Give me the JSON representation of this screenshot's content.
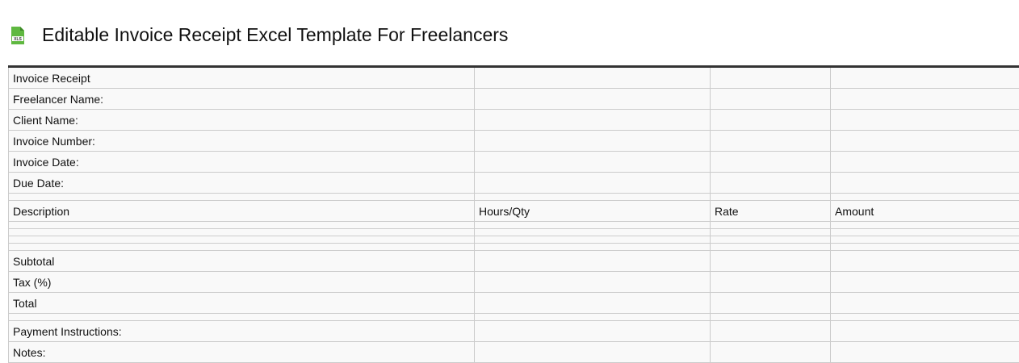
{
  "title": "Editable Invoice Receipt Excel Template For Freelancers",
  "icon": "xls-file-icon",
  "icon_color": "#5fb840",
  "rows": [
    [
      "Invoice Receipt",
      "",
      "",
      ""
    ],
    [
      "Freelancer Name:",
      "",
      "",
      ""
    ],
    [
      "Client Name:",
      "",
      "",
      ""
    ],
    [
      "Invoice Number:",
      "",
      "",
      ""
    ],
    [
      "Invoice Date:",
      "",
      "",
      ""
    ],
    [
      "Due Date:",
      "",
      "",
      ""
    ],
    null,
    [
      "Description",
      "Hours/Qty",
      "Rate",
      "Amount"
    ],
    null,
    null,
    null,
    null,
    [
      "Subtotal",
      "",
      "",
      ""
    ],
    [
      "Tax (%)",
      "",
      "",
      ""
    ],
    [
      "Total",
      "",
      "",
      ""
    ],
    null,
    [
      "Payment Instructions:",
      "",
      "",
      ""
    ],
    [
      "Notes:",
      "",
      "",
      ""
    ]
  ]
}
